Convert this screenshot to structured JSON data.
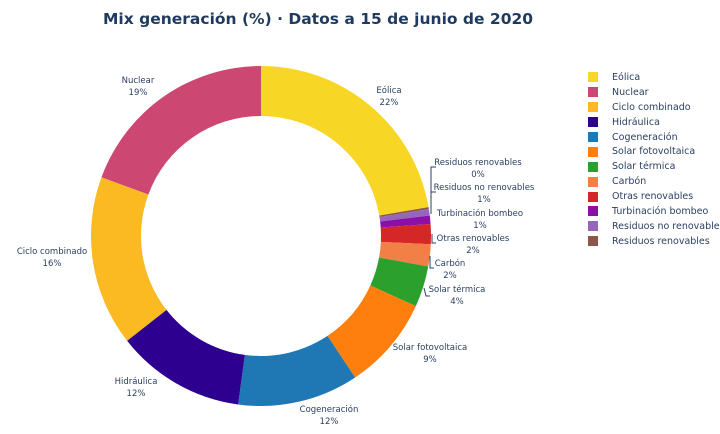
{
  "chart_data": {
    "type": "pie",
    "subtype": "donut",
    "title": "Mix generación (%) · Datos a 15 de junio de 2020",
    "direction": "clockwise",
    "start": "top",
    "legend_position": "right",
    "slices": [
      {
        "label": "Eólica",
        "value": 22.3,
        "text": "22%",
        "color": "#f8d626"
      },
      {
        "label": "Residuos renovables",
        "value": 0.2,
        "text": "0%",
        "color": "#8c564b"
      },
      {
        "label": "Residuos no renovables",
        "value": 0.6,
        "text": "1%",
        "color": "#9467bd"
      },
      {
        "label": "Turbinación bombeo",
        "value": 0.8,
        "text": "1%",
        "color": "#8c0fa8"
      },
      {
        "label": "Otras renovables",
        "value": 1.9,
        "text": "2%",
        "color": "#d62728"
      },
      {
        "label": "Carbón",
        "value": 2.1,
        "text": "2%",
        "color": "#f28046"
      },
      {
        "label": "Solar térmica",
        "value": 3.9,
        "text": "4%",
        "color": "#2ca02c"
      },
      {
        "label": "Solar fotovoltaica",
        "value": 8.9,
        "text": "9%",
        "color": "#ff7f0e"
      },
      {
        "label": "Cogeneración",
        "value": 11.5,
        "text": "12%",
        "color": "#1f77b4"
      },
      {
        "label": "Hidráulica",
        "value": 12.3,
        "text": "12%",
        "color": "#2e0090"
      },
      {
        "label": "Ciclo combinado",
        "value": 16.2,
        "text": "16%",
        "color": "#fbb922"
      },
      {
        "label": "Nuclear",
        "value": 19.4,
        "text": "19%",
        "color": "#cc4872"
      }
    ],
    "legend": [
      {
        "label": "Eólica",
        "color": "#f8d626"
      },
      {
        "label": "Nuclear",
        "color": "#cc4872"
      },
      {
        "label": "Ciclo combinado",
        "color": "#fbb922"
      },
      {
        "label": "Hidráulica",
        "color": "#2e0090"
      },
      {
        "label": "Cogeneración",
        "color": "#1f77b4"
      },
      {
        "label": "Solar fotovoltaica",
        "color": "#ff7f0e"
      },
      {
        "label": "Solar térmica",
        "color": "#2ca02c"
      },
      {
        "label": "Carbón",
        "color": "#f28046"
      },
      {
        "label": "Otras renovables",
        "color": "#d62728"
      },
      {
        "label": "Turbinación bombeo",
        "color": "#8c0fa8"
      },
      {
        "label": "Residuos no renovables",
        "color": "#9467bd"
      },
      {
        "label": "Residuos renovables",
        "color": "#8c564b"
      }
    ]
  }
}
